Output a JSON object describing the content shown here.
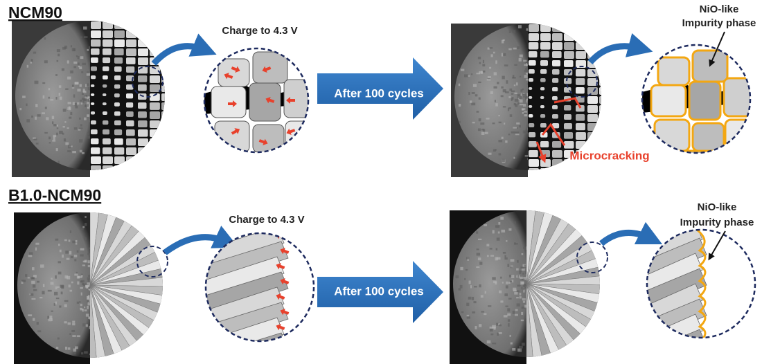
{
  "rows": [
    {
      "label": "NCM90",
      "charge": "Charge to 4.3 V",
      "cycle": "After 100 cycles",
      "impurity": [
        "NiO-like",
        "Impurity phase"
      ],
      "crack": "Microcracking"
    },
    {
      "label": "B1.0-NCM90",
      "charge": "Charge to 4.3 V",
      "cycle": "After 100 cycles",
      "impurity": [
        "NiO-like",
        "Impurity phase"
      ]
    }
  ]
}
